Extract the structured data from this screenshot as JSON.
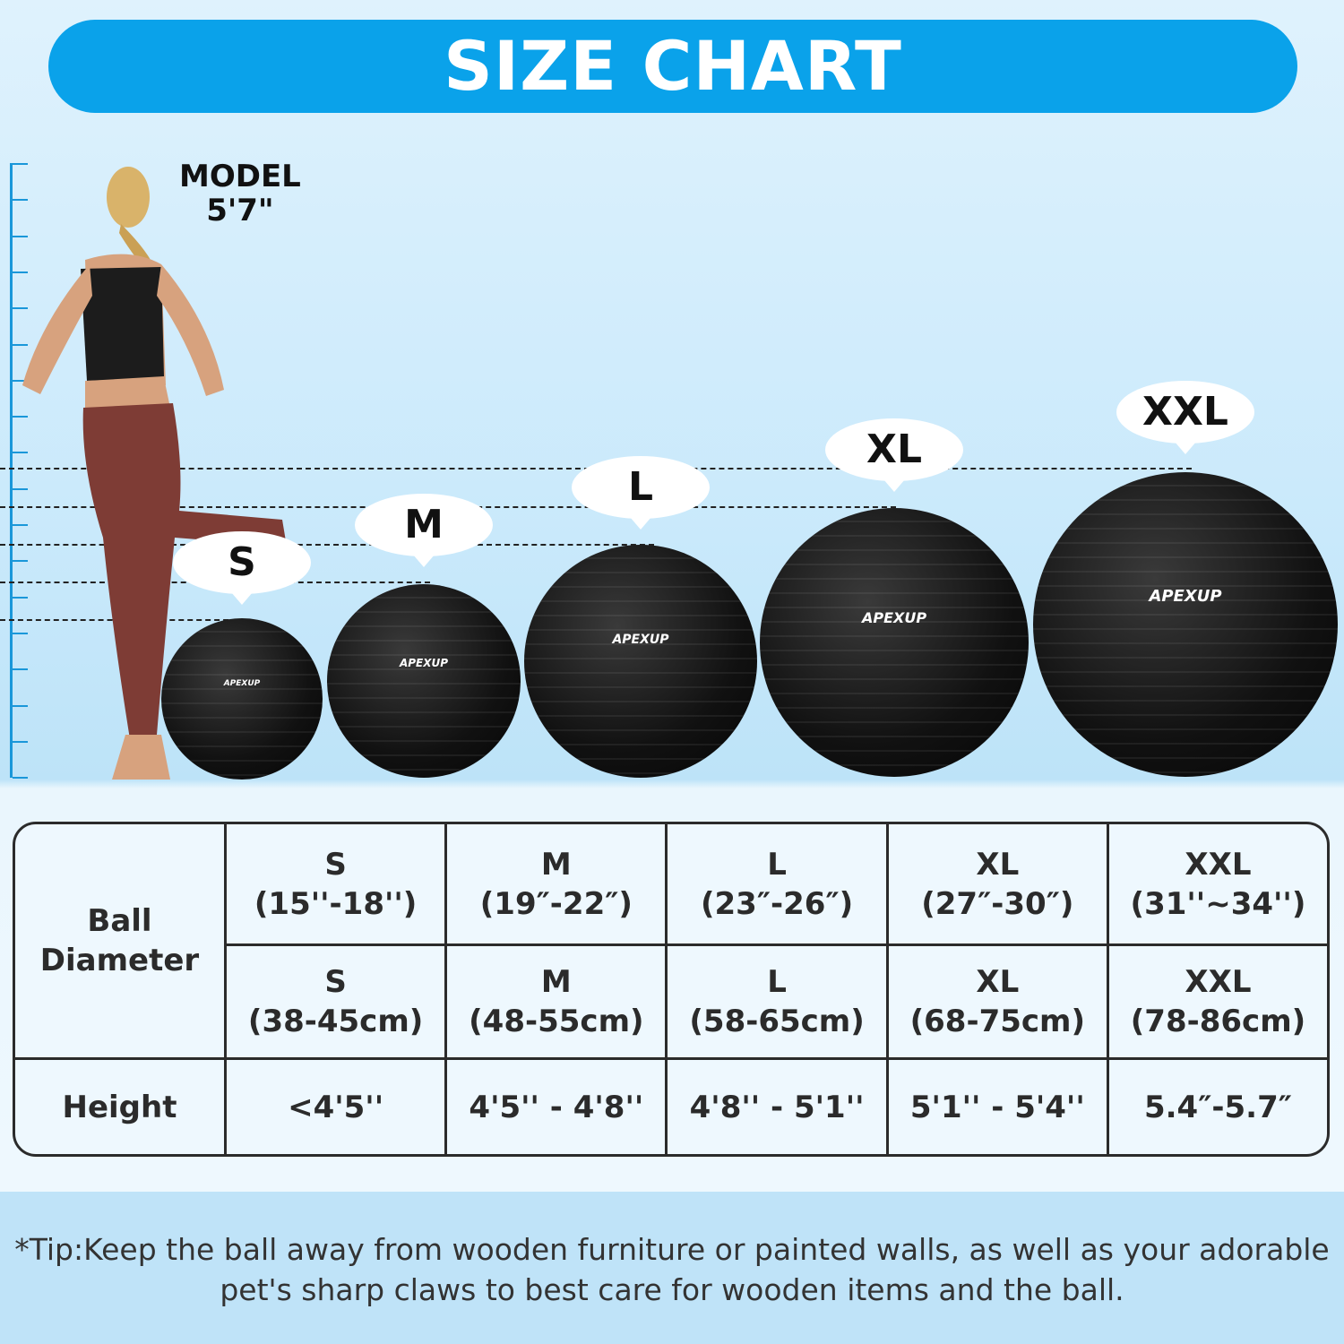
{
  "title": "SIZE CHART",
  "model": {
    "line1": "MODEL",
    "line2": "5'7\""
  },
  "brand": "APEXUP",
  "sizes": [
    {
      "label": "S",
      "inch": "(15''-18'')",
      "cm": "(38-45cm)",
      "height": "<4'5''"
    },
    {
      "label": "M",
      "inch": "(19″-22″)",
      "cm": "(48-55cm)",
      "height": "4'5'' - 4'8''"
    },
    {
      "label": "L",
      "inch": "(23″-26″)",
      "cm": "(58-65cm)",
      "height": "4'8'' - 5'1''"
    },
    {
      "label": "XL",
      "inch": "(27″-30″)",
      "cm": "(68-75cm)",
      "height": "5'1'' - 5'4''"
    },
    {
      "label": "XXL",
      "inch": "(31''~34'')",
      "cm": "(78-86cm)",
      "height": "5.4″-5.7″"
    }
  ],
  "table": {
    "row1_header_line1": "Ball",
    "row1_header_line2": "Diameter",
    "row2_header": "Height"
  },
  "tip": "*Tip:Keep the ball away from wooden furniture or painted walls, as well as your adorable pet's sharp claws to best care for wooden items and the ball.",
  "colors": {
    "accent": "#0aa2ea",
    "ball": "#111111",
    "text": "#2b2b2b"
  }
}
